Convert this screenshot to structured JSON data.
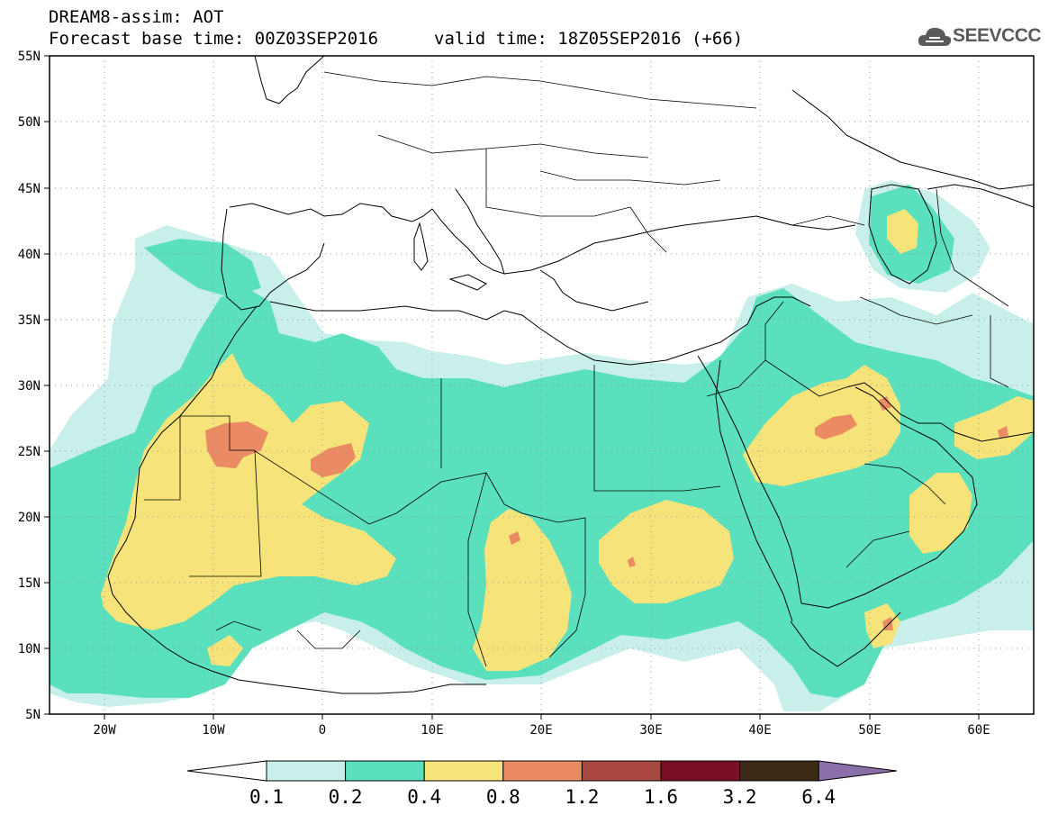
{
  "header": {
    "title": "DREAM8-assim: AOT",
    "base_time": "Forecast base time: 00Z03SEP2016",
    "valid_time": "valid time: 18Z05SEP2016 (+66)",
    "logo_text": "SEEVCCC"
  },
  "map": {
    "lat_labels": [
      "55N",
      "50N",
      "45N",
      "40N",
      "35N",
      "30N",
      "25N",
      "20N",
      "15N",
      "10N",
      "5N"
    ],
    "lon_labels": [
      "20W",
      "10W",
      "0",
      "10E",
      "20E",
      "30E",
      "40E",
      "50E",
      "60E"
    ],
    "lat_range": [
      5,
      55
    ],
    "lon_range": [
      -25,
      65
    ],
    "grid": "dotted"
  },
  "colorbar": {
    "labels": [
      "0.1",
      "0.2",
      "0.4",
      "0.8",
      "1.2",
      "1.6",
      "3.2",
      "6.4"
    ],
    "colors": [
      "#ffffff",
      "#c8efe9",
      "#5be0bd",
      "#f6e37a",
      "#ea8b63",
      "#a8483e",
      "#7a0f27",
      "#3d2a16",
      "#8a6fa8"
    ]
  }
}
